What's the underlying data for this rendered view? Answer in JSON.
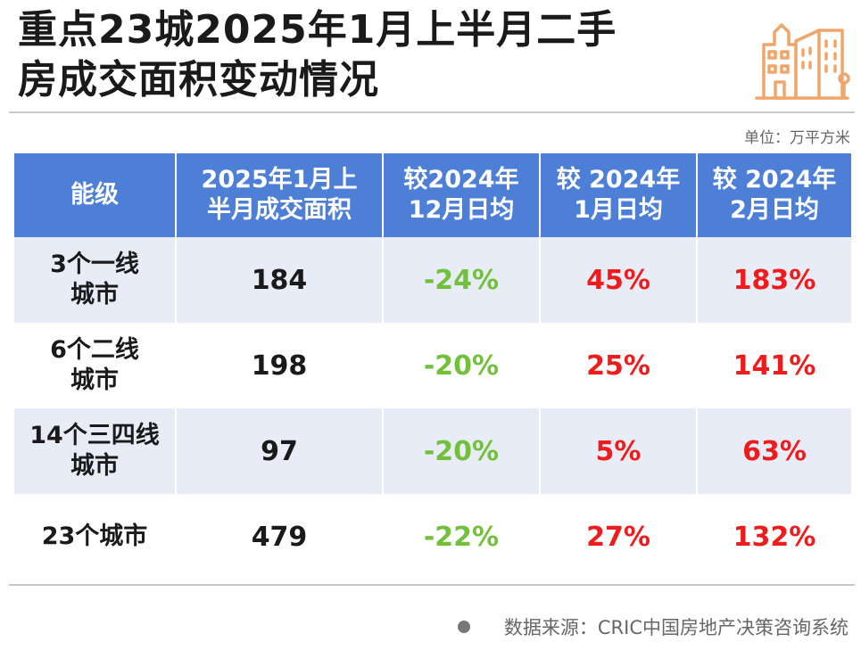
{
  "title": {
    "line1": "重点23城2025年1月上半月二手",
    "line2": "房成交面积变动情况"
  },
  "icon": "city-building-icon",
  "unit_label": "单位：万平方米",
  "table": {
    "headers": [
      {
        "line1": "能级",
        "line2": ""
      },
      {
        "line1": "2025年1月上",
        "line2": "半月成交面积"
      },
      {
        "line1": "较2024年",
        "line2": "12月日均"
      },
      {
        "line1": "较 2024年",
        "line2": "1月日均"
      },
      {
        "line1": "较 2024年",
        "line2": "2月日均"
      }
    ],
    "rows": [
      {
        "level_line1": "3个一线",
        "level_line2": "城市",
        "area": "184",
        "vs_dec": "-24%",
        "vs_jan": "45%",
        "vs_feb": "183%"
      },
      {
        "level_line1": "6个二线",
        "level_line2": "城市",
        "area": "198",
        "vs_dec": "-20%",
        "vs_jan": "25%",
        "vs_feb": "141%"
      },
      {
        "level_line1": "14个三四线",
        "level_line2": "城市",
        "area": "97",
        "vs_dec": "-20%",
        "vs_jan": "5%",
        "vs_feb": "63%"
      },
      {
        "level_line1": "23个城市",
        "level_line2": "",
        "area": "479",
        "vs_dec": "-22%",
        "vs_jan": "27%",
        "vs_feb": "132%"
      }
    ]
  },
  "colors": {
    "header_bg": "#4e7fd6",
    "row_shade": "#e8ecf6",
    "negative": "#72c03c",
    "positive": "#ee1c1c",
    "icon_orange": "#f0a66a"
  },
  "source": "数据来源：CRIC中国房地产决策咨询系统"
}
